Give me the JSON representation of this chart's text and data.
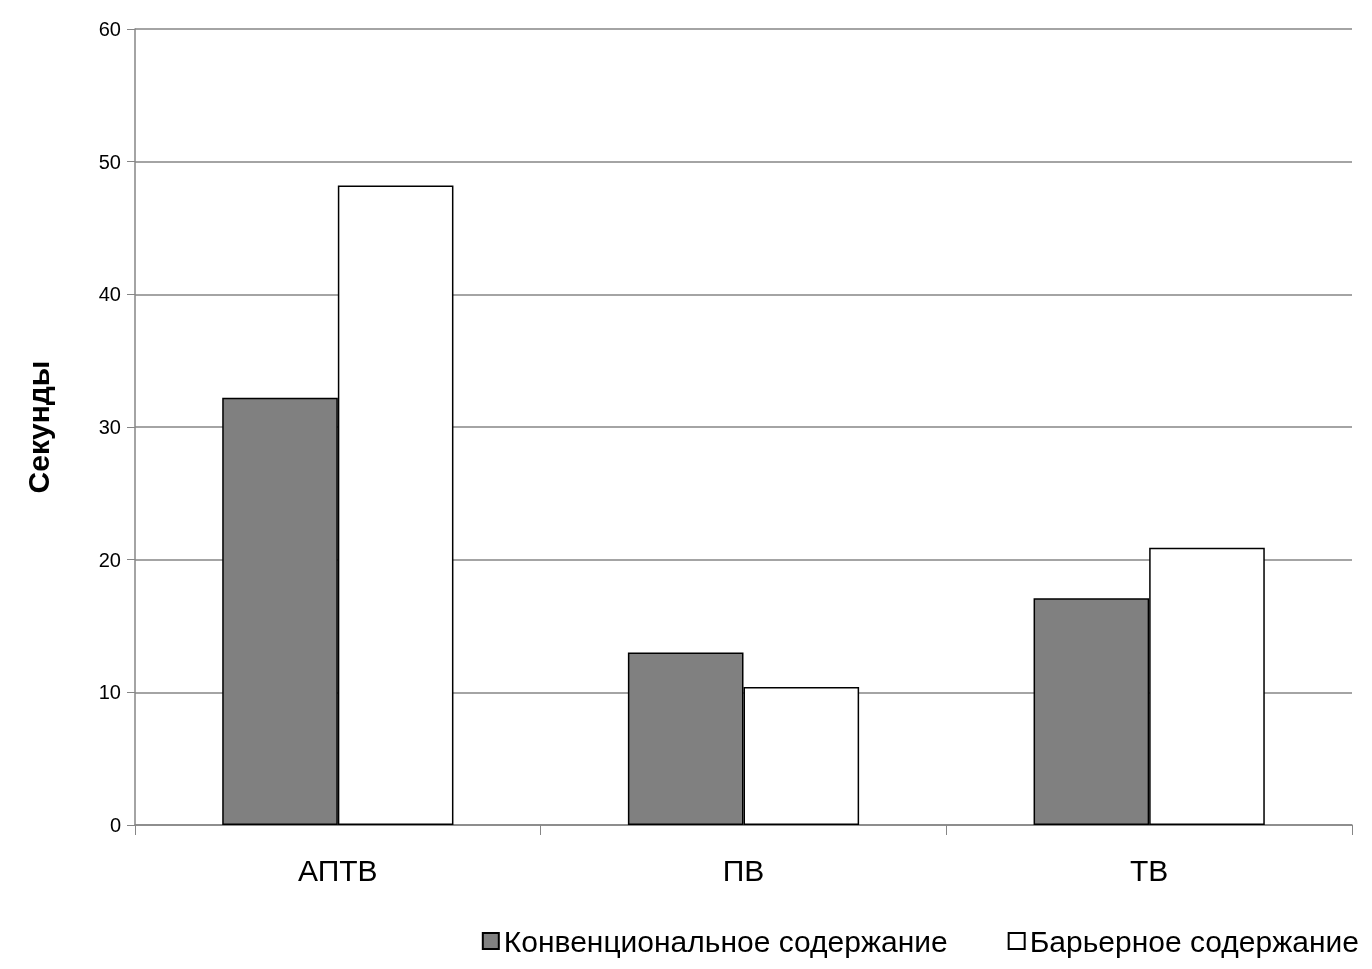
{
  "chart_data": {
    "type": "bar",
    "ylabel": "Секунды",
    "categories": [
      "АПТВ",
      "ПВ",
      "ТВ"
    ],
    "series": [
      {
        "name": "Конвенциональное содержание",
        "color": "#808080",
        "values": [
          32.2,
          13.0,
          17.1
        ]
      },
      {
        "name": "Барьерное содержание",
        "color": "#ffffff",
        "values": [
          48.2,
          10.4,
          20.9
        ]
      }
    ],
    "ylim": [
      0,
      60
    ],
    "yticks": [
      0,
      10,
      20,
      30,
      40,
      50,
      60
    ],
    "grid": "y",
    "legend": "bottom right"
  }
}
